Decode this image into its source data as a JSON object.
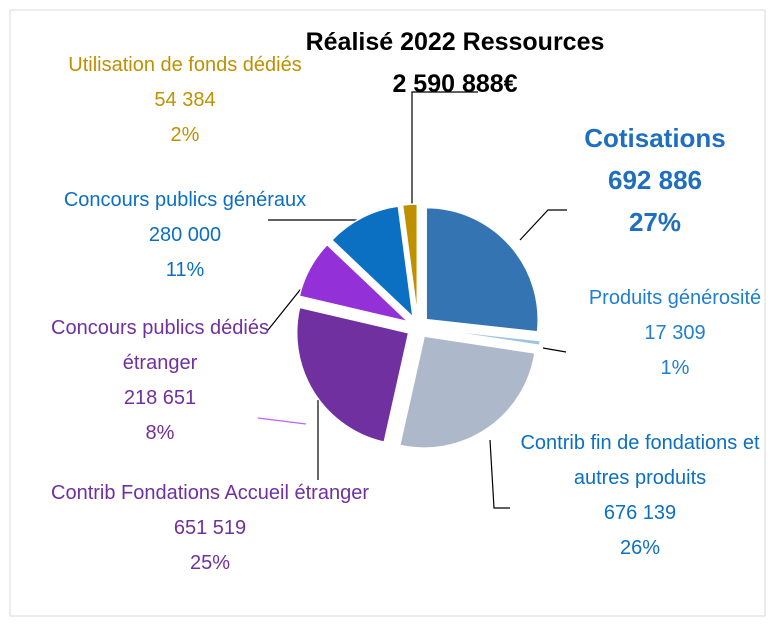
{
  "chart_data": {
    "type": "pie",
    "title": "Réalisé 2022 Ressources",
    "subtitle": "2 590 888€",
    "categories": [
      "Cotisations",
      "Produits générosité",
      "Contrib fin de fondations et autres produits",
      "Contrib Fondations Accueil étranger",
      "Concours publics dédiés étranger",
      "Concours publics généraux",
      "Utilisation de fonds dédiés"
    ],
    "values": [
      692886,
      17309,
      676139,
      651519,
      218651,
      280000,
      54384
    ],
    "value_labels": [
      "692 886",
      "17 309",
      "676 139",
      "651 519",
      "218 651",
      "280 000",
      "54 384"
    ],
    "percent_labels": [
      "27%",
      "1%",
      "26%",
      "25%",
      "8%",
      "11%",
      "2%"
    ],
    "colors": [
      "#3574b3",
      "#9dc3e6",
      "#adb9ca",
      "#7030a0",
      "#9330d8",
      "#0b6fc2",
      "#bf9000"
    ],
    "label_colors": [
      "#1f6fc0",
      "#1f7fd0",
      "#0b6fc2",
      "#7030a0",
      "#7030a0",
      "#0b6fc2",
      "#bf9000"
    ]
  }
}
